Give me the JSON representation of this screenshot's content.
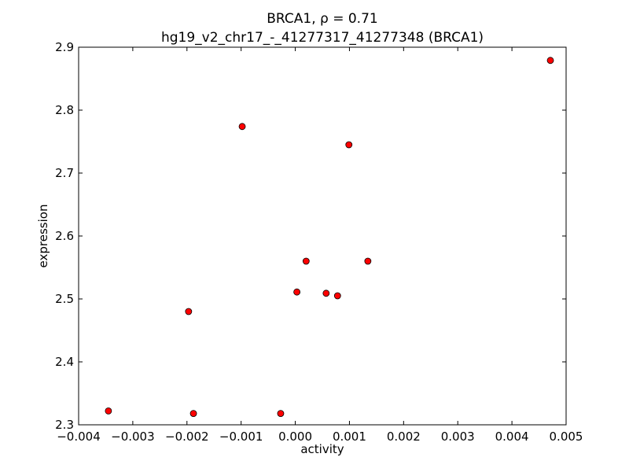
{
  "chart_data": {
    "type": "scatter",
    "title_line1": "BRCA1, ρ = 0.71",
    "title_line2": "hg19_v2_chr17_-_41277317_41277348 (BRCA1)",
    "xlabel": "activity",
    "ylabel": "expression",
    "xlim": [
      -0.004,
      0.005
    ],
    "ylim": [
      2.3,
      2.9
    ],
    "xticks": [
      -0.004,
      -0.003,
      -0.002,
      -0.001,
      0.0,
      0.001,
      0.002,
      0.003,
      0.004,
      0.005
    ],
    "xtick_labels": [
      "−0.004",
      "−0.003",
      "−0.002",
      "−0.001",
      "0.000",
      "0.001",
      "0.002",
      "0.003",
      "0.004",
      "0.005"
    ],
    "yticks": [
      2.3,
      2.4,
      2.5,
      2.6,
      2.7,
      2.8,
      2.9
    ],
    "ytick_labels": [
      "2.3",
      "2.4",
      "2.5",
      "2.6",
      "2.7",
      "2.8",
      "2.9"
    ],
    "grid": false,
    "marker_color": "#ff0000",
    "marker_edge_color": "#000000",
    "points": [
      {
        "x": -0.00345,
        "y": 2.322
      },
      {
        "x": -0.00188,
        "y": 2.318
      },
      {
        "x": -0.00197,
        "y": 2.48
      },
      {
        "x": -0.00098,
        "y": 2.774
      },
      {
        "x": -0.00027,
        "y": 2.318
      },
      {
        "x": 3e-05,
        "y": 2.511
      },
      {
        "x": 0.0002,
        "y": 2.56
      },
      {
        "x": 0.00057,
        "y": 2.509
      },
      {
        "x": 0.00078,
        "y": 2.505
      },
      {
        "x": 0.00099,
        "y": 2.745
      },
      {
        "x": 0.00134,
        "y": 2.56
      },
      {
        "x": 0.00471,
        "y": 2.879
      }
    ]
  }
}
